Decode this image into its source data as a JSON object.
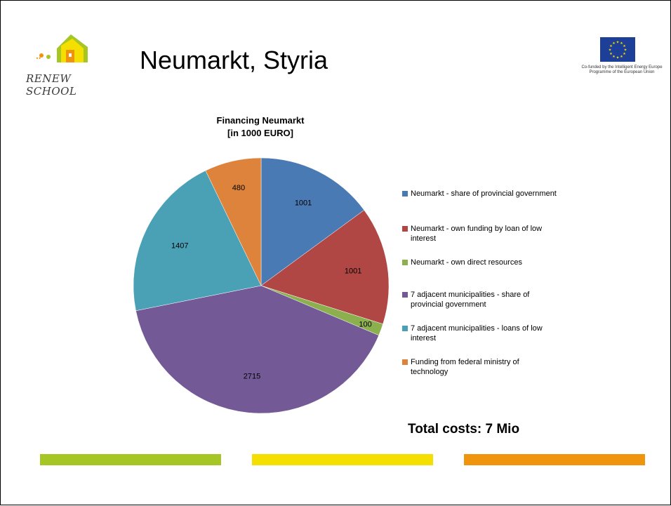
{
  "slide": {
    "title": "Neumarkt, Styria",
    "logo_text": "RENEW SCHOOL",
    "eu_caption": "Co-funded by the Intelligent Energy Europe Programme of the European Union",
    "total_costs": "Total costs: 7 Mio"
  },
  "colors": {
    "bar_green": "#a5c624",
    "bar_yellow": "#f5df00",
    "bar_orange": "#f0930d",
    "eu_blue": "#1d3f97",
    "eu_star": "#ffdd00"
  },
  "chart_data": {
    "type": "pie",
    "title_lines": [
      "Financing Neumarkt",
      "[in 1000 EURO]"
    ],
    "categories": [
      "Neumarkt - share of provincial government",
      "Neumarkt - own funding by loan of low interest",
      "Neumarkt - own direct resources",
      "7 adjacent municipalities - share of provincial government",
      "7 adjacent municipalities - loans of low interest",
      "Funding from federal ministry of technology"
    ],
    "values": [
      1001,
      1001,
      100,
      2715,
      1407,
      480
    ],
    "colors": [
      "#4a7ab4",
      "#b04744",
      "#8db04f",
      "#735a96",
      "#4aa0b5",
      "#de833b"
    ],
    "legend_position": "right"
  }
}
